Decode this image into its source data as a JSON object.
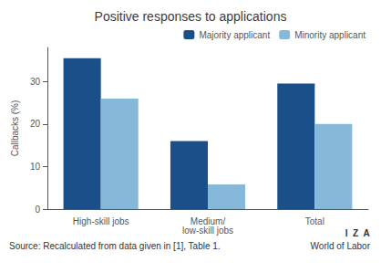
{
  "chart_data": {
    "type": "bar",
    "title": "Positive responses to applications",
    "categories": [
      "High-skill jobs",
      "Medium/\nlow-skill jobs",
      "Total"
    ],
    "series": [
      {
        "name": "Majority applicant",
        "color": "#1b4f8a",
        "values": [
          35.5,
          16.0,
          29.5
        ]
      },
      {
        "name": "Minority applicant",
        "color": "#85b8d9",
        "values": [
          26.0,
          5.8,
          20.0
        ]
      }
    ],
    "ylabel": "Callbacks (%)",
    "ylim": [
      0,
      38
    ],
    "yticks": [
      0,
      10,
      20,
      30
    ],
    "grid": false,
    "legend": "upper right",
    "annotations": [
      "Source: Recalculated from data given in [1], Table 1.",
      "I  Z  A",
      "World of Labor"
    ]
  }
}
